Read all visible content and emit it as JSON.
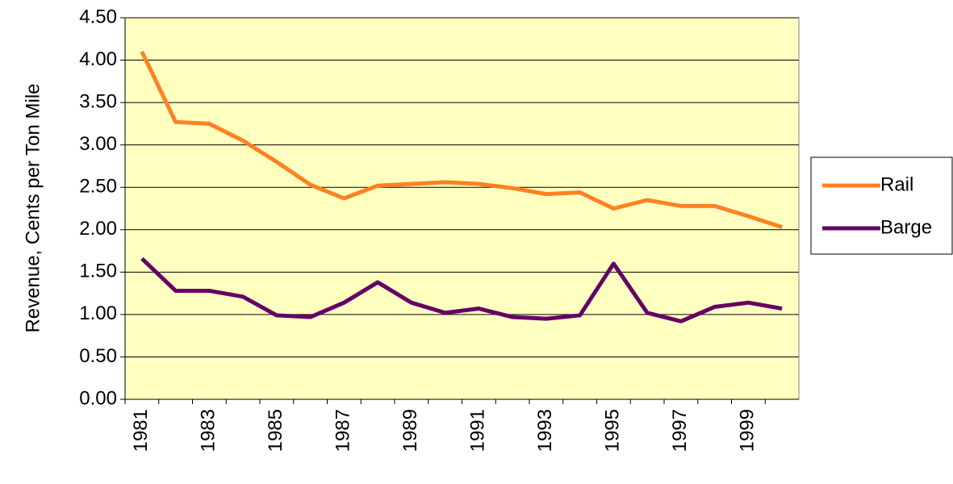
{
  "chart_data": {
    "type": "line",
    "y_label": "Revenue,  Cents per Ton Mile",
    "categories": [
      "1981",
      null,
      "1983",
      null,
      "1985",
      null,
      "1987",
      null,
      "1989",
      null,
      "1991",
      null,
      "1993",
      null,
      "1995",
      null,
      "1997",
      null,
      "1999",
      null
    ],
    "series": [
      {
        "name": "Rail",
        "color": "#ff8022",
        "values": [
          4.1,
          3.27,
          3.25,
          3.05,
          2.8,
          2.53,
          2.37,
          2.52,
          2.54,
          2.56,
          2.54,
          2.49,
          2.42,
          2.44,
          2.25,
          2.35,
          2.28,
          2.28,
          2.16,
          2.03
        ]
      },
      {
        "name": "Barge",
        "color": "#660066",
        "values": [
          1.66,
          1.28,
          1.28,
          1.21,
          0.99,
          0.97,
          1.14,
          1.38,
          1.14,
          1.02,
          1.07,
          0.97,
          0.95,
          0.99,
          1.6,
          1.02,
          0.92,
          1.09,
          1.14,
          1.07
        ]
      }
    ],
    "ylim": [
      0,
      4.5
    ],
    "yticks": [
      {
        "value": 0,
        "label": "0.00"
      },
      {
        "value": 0.5,
        "label": "0.50"
      },
      {
        "value": 1,
        "label": "1.00"
      },
      {
        "value": 1.5,
        "label": "1.50"
      },
      {
        "value": 2,
        "label": "2.00"
      },
      {
        "value": 2.5,
        "label": "2.50"
      },
      {
        "value": 3,
        "label": "3.00"
      },
      {
        "value": 3.5,
        "label": "3.50"
      },
      {
        "value": 4,
        "label": "4.00"
      },
      {
        "value": 4.5,
        "label": "4.50"
      }
    ],
    "grid": true,
    "plot_background": "#ffffc0",
    "legend_position": "right"
  }
}
